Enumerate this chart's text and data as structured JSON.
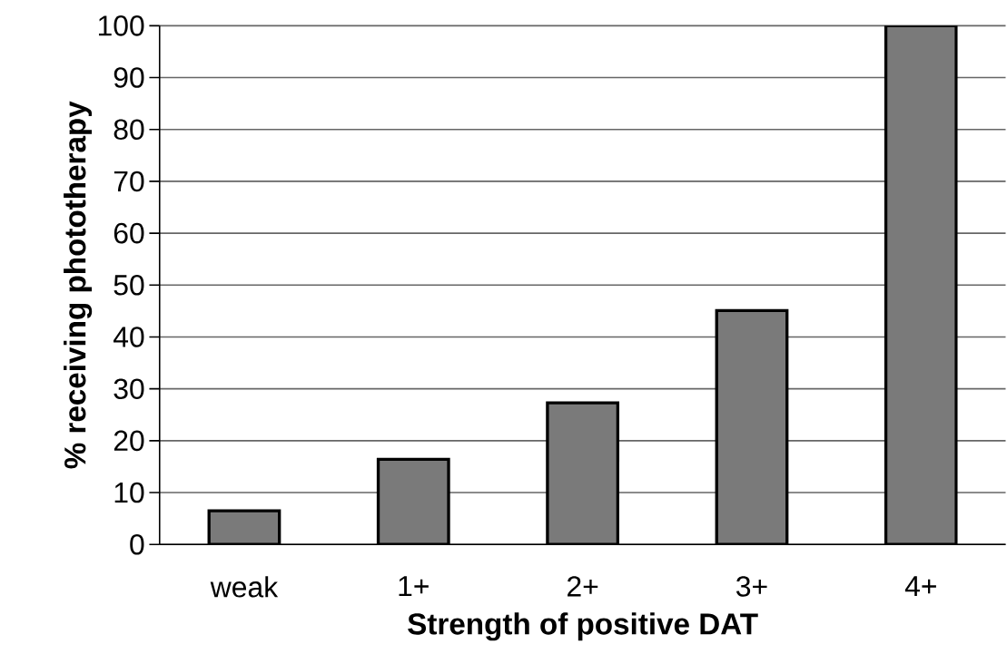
{
  "chart_data": {
    "type": "bar",
    "xlabel": "Strength of positive DAT",
    "ylabel": "% receiving phototherapy",
    "categories": [
      "weak",
      "1+",
      "2+",
      "3+",
      "4+"
    ],
    "values": [
      6.5,
      16.4,
      27.3,
      45.1,
      100
    ],
    "color": "#7a7a7a",
    "ylim": [
      0,
      100
    ],
    "yticks": [
      0,
      10,
      20,
      30,
      40,
      50,
      60,
      70,
      80,
      90,
      100
    ],
    "grid": "y"
  }
}
